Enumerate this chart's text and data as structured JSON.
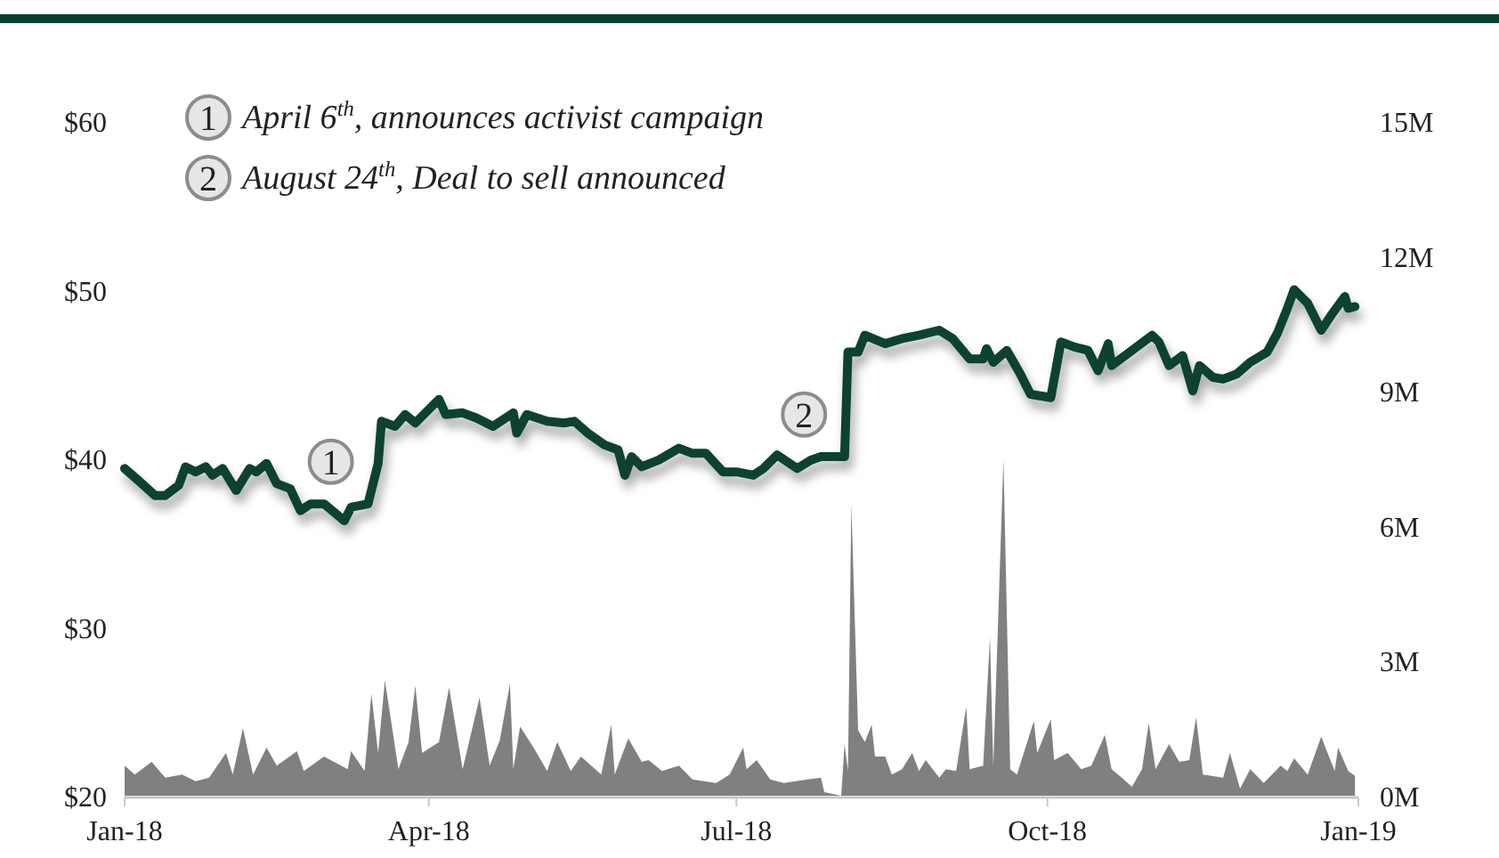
{
  "chart_data": {
    "type": "line",
    "annotations": [
      {
        "text": "1",
        "x": "2018-03-03",
        "y": 39.8
      },
      {
        "text": "2",
        "x": "2018-07-21",
        "y": 42.6
      },
      "April 6$^{th}$, announces activist campaign",
      "August 24$^{th}$, Deal to sell announced"
    ],
    "xlim": [
      "2018-01-01",
      "2019-01-01"
    ],
    "xticks": [
      {
        "value": "2018-01-01",
        "label": "Jan-18"
      },
      {
        "value": "2018-04-01",
        "label": "Apr-18"
      },
      {
        "value": "2018-07-01",
        "label": "Jul-18"
      },
      {
        "value": "2018-10-01",
        "label": "Oct-18"
      },
      {
        "value": "2019-01-01",
        "label": "Jan-19"
      }
    ],
    "ylim": [
      20,
      60
    ],
    "yticks": [
      {
        "value": 20,
        "label": "$20"
      },
      {
        "value": 30,
        "label": "$30"
      },
      {
        "value": 40,
        "label": "$40"
      },
      {
        "value": 50,
        "label": "$50"
      },
      {
        "value": 60,
        "label": "$60"
      }
    ],
    "y2lim": [
      0,
      15
    ],
    "y2ticks": [
      {
        "value": 0,
        "label": "0M"
      },
      {
        "value": 3,
        "label": "3M"
      },
      {
        "value": 6,
        "label": "6M"
      },
      {
        "value": 9,
        "label": "9M"
      },
      {
        "value": 12,
        "label": "12M"
      },
      {
        "value": 15,
        "label": "15M"
      }
    ],
    "grid": false,
    "series": [
      {
        "type": "area",
        "axis": "y2",
        "color": "#808080",
        "x": [
          "2018-01-01",
          "2018-01-04",
          "2018-01-09",
          "2018-01-13",
          "2018-01-18",
          "2018-01-22",
          "2018-01-26",
          "2018-01-31",
          "2018-02-02",
          "2018-02-05",
          "2018-02-08",
          "2018-02-12",
          "2018-02-15",
          "2018-02-21",
          "2018-02-23",
          "2018-03-01",
          "2018-03-08",
          "2018-03-09",
          "2018-03-13",
          "2018-03-15",
          "2018-03-17",
          "2018-03-19",
          "2018-03-23",
          "2018-03-26",
          "2018-03-28",
          "2018-03-30",
          "2018-04-04",
          "2018-04-07",
          "2018-04-11",
          "2018-04-16",
          "2018-04-19",
          "2018-04-22",
          "2018-04-25",
          "2018-04-26",
          "2018-04-28",
          "2018-05-02",
          "2018-05-06",
          "2018-05-09",
          "2018-05-13",
          "2018-05-16",
          "2018-05-22",
          "2018-05-25",
          "2018-05-26",
          "2018-05-30",
          "2018-06-03",
          "2018-06-05",
          "2018-06-09",
          "2018-06-14",
          "2018-06-18",
          "2018-06-25",
          "2018-06-29",
          "2018-07-03",
          "2018-07-04",
          "2018-07-07",
          "2018-07-11",
          "2018-07-15",
          "2018-07-22",
          "2018-07-26",
          "2018-07-27",
          "2018-08-01",
          "2018-08-02",
          "2018-08-03",
          "2018-08-04",
          "2018-08-06",
          "2018-08-08",
          "2018-08-10",
          "2018-08-11",
          "2018-08-14",
          "2018-08-16",
          "2018-08-19",
          "2018-08-22",
          "2018-08-24",
          "2018-08-26",
          "2018-08-30",
          "2018-09-01",
          "2018-09-04",
          "2018-09-07",
          "2018-09-08",
          "2018-09-12",
          "2018-09-14",
          "2018-09-15",
          "2018-09-18",
          "2018-09-20",
          "2018-09-22",
          "2018-09-27",
          "2018-09-28",
          "2018-10-02",
          "2018-10-03",
          "2018-10-07",
          "2018-10-11",
          "2018-10-14",
          "2018-10-18",
          "2018-10-20",
          "2018-10-23",
          "2018-10-26",
          "2018-10-29",
          "2018-10-31",
          "2018-11-02",
          "2018-11-06",
          "2018-11-09",
          "2018-11-12",
          "2018-11-14",
          "2018-11-16",
          "2018-11-22",
          "2018-11-24",
          "2018-11-27",
          "2018-11-30",
          "2018-12-04",
          "2018-12-09",
          "2018-12-11",
          "2018-12-13",
          "2018-12-17",
          "2018-12-21",
          "2018-12-25",
          "2018-12-26",
          "2018-12-29",
          "2018-12-31"
        ],
        "values": [
          0.67,
          0.47,
          0.75,
          0.4,
          0.47,
          0.32,
          0.4,
          0.95,
          0.47,
          1.5,
          0.47,
          1.07,
          0.67,
          0.99,
          0.55,
          0.87,
          0.59,
          0.99,
          0.55,
          2.26,
          0.95,
          2.57,
          0.59,
          1.19,
          2.45,
          0.95,
          1.19,
          2.41,
          0.59,
          2.18,
          0.67,
          1.23,
          2.49,
          0.59,
          1.54,
          1.07,
          0.55,
          1.19,
          0.55,
          0.87,
          0.47,
          1.58,
          0.47,
          1.27,
          0.75,
          0.79,
          0.55,
          0.67,
          0.36,
          0.28,
          0.47,
          1.07,
          0.59,
          0.79,
          0.36,
          0.28,
          0.36,
          0.4,
          0.08,
          0,
          1.15,
          0.55,
          6.49,
          1.46,
          1.19,
          1.58,
          0.87,
          0.87,
          0.47,
          0.59,
          0.95,
          0.55,
          0.79,
          0.4,
          0.59,
          0.55,
          1.98,
          0.59,
          0.67,
          3.52,
          0.67,
          7.48,
          0.59,
          0.47,
          1.66,
          0.95,
          1.7,
          0.79,
          0.95,
          0.59,
          0.67,
          1.35,
          0.59,
          0.4,
          0.2,
          0.59,
          1.62,
          0.59,
          1.15,
          0.75,
          0.79,
          1.74,
          0.47,
          0.4,
          0.95,
          0.16,
          0.59,
          0.28,
          0.67,
          0.55,
          0.83,
          0.47,
          1.31,
          0.55,
          1.07,
          0.55,
          0.44
        ]
      },
      {
        "axis": "y",
        "color": "#07432f",
        "x": [
          "2018-01-01",
          "2018-01-05",
          "2018-01-10",
          "2018-01-13",
          "2018-01-17",
          "2018-01-19",
          "2018-01-22",
          "2018-01-25",
          "2018-01-27",
          "2018-01-30",
          "2018-02-03",
          "2018-02-07",
          "2018-02-09",
          "2018-02-12",
          "2018-02-15",
          "2018-02-19",
          "2018-02-22",
          "2018-02-25",
          "2018-03-01",
          "2018-03-04",
          "2018-03-07",
          "2018-03-09",
          "2018-03-14",
          "2018-03-17",
          "2018-03-18",
          "2018-03-22",
          "2018-03-25",
          "2018-03-28",
          "2018-04-02",
          "2018-04-04",
          "2018-04-06",
          "2018-04-11",
          "2018-04-15",
          "2018-04-20",
          "2018-04-26",
          "2018-04-27",
          "2018-04-30",
          "2018-05-06",
          "2018-05-11",
          "2018-05-14",
          "2018-05-18",
          "2018-05-23",
          "2018-05-27",
          "2018-05-29",
          "2018-05-31",
          "2018-06-03",
          "2018-06-08",
          "2018-06-14",
          "2018-06-18",
          "2018-06-22",
          "2018-06-27",
          "2018-07-01",
          "2018-07-06",
          "2018-07-09",
          "2018-07-13",
          "2018-07-19",
          "2018-07-23",
          "2018-07-26",
          "2018-08-02",
          "2018-08-03",
          "2018-08-06",
          "2018-08-08",
          "2018-08-14",
          "2018-08-19",
          "2018-08-24",
          "2018-08-30",
          "2018-09-03",
          "2018-09-08",
          "2018-09-12",
          "2018-09-13",
          "2018-09-15",
          "2018-09-19",
          "2018-09-23",
          "2018-09-26",
          "2018-10-02",
          "2018-10-05",
          "2018-10-09",
          "2018-10-13",
          "2018-10-16",
          "2018-10-19",
          "2018-10-20",
          "2018-10-24",
          "2018-11-01",
          "2018-11-03",
          "2018-11-06",
          "2018-11-10",
          "2018-11-13",
          "2018-11-15",
          "2018-11-19",
          "2018-11-22",
          "2018-11-26",
          "2018-11-30",
          "2018-12-05",
          "2018-12-08",
          "2018-12-11",
          "2018-12-13",
          "2018-12-17",
          "2018-12-21",
          "2018-12-24",
          "2018-12-28",
          "2018-12-29",
          "2018-12-31"
        ],
        "values": [
          39.4,
          38.7,
          37.8,
          37.8,
          38.4,
          39.5,
          39.2,
          39.5,
          39.0,
          39.4,
          38.1,
          39.4,
          39.2,
          39.7,
          38.5,
          38.2,
          36.9,
          37.3,
          37.3,
          36.8,
          36.3,
          37.1,
          37.3,
          39.7,
          42.2,
          41.9,
          42.6,
          42.1,
          43.1,
          43.5,
          42.6,
          42.7,
          42.4,
          41.9,
          42.7,
          41.5,
          42.6,
          42.2,
          42.1,
          42.2,
          41.5,
          40.8,
          40.5,
          39.0,
          40.1,
          39.5,
          39.9,
          40.6,
          40.3,
          40.3,
          39.2,
          39.2,
          39.0,
          39.4,
          40.2,
          39.4,
          39.9,
          40.1,
          40.1,
          46.3,
          46.3,
          47.3,
          46.8,
          47.1,
          47.3,
          47.6,
          47.1,
          45.9,
          45.9,
          46.5,
          45.7,
          46.4,
          45.0,
          43.8,
          43.6,
          46.9,
          46.6,
          46.4,
          45.2,
          46.8,
          45.5,
          46.1,
          47.3,
          46.9,
          45.5,
          46.1,
          44.0,
          45.5,
          44.8,
          44.7,
          45.0,
          45.7,
          46.3,
          47.4,
          48.9,
          50.0,
          49.2,
          47.6,
          48.5,
          49.6,
          48.9,
          49.0
        ]
      }
    ]
  }
}
